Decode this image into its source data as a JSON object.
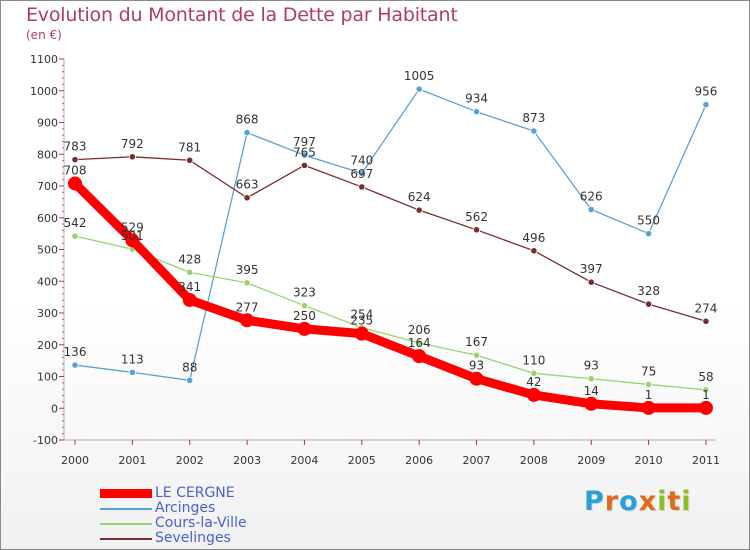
{
  "header": {
    "title": "Evolution du Montant de la Dette par Habitant",
    "subtitle": "(en €)"
  },
  "brand": {
    "logo_letters": [
      {
        "char": "P",
        "color": "#2aa0d8"
      },
      {
        "char": "r",
        "color": "#e06a1c"
      },
      {
        "char": "o",
        "color": "#2aa0d8"
      },
      {
        "char": "x",
        "color": "#e06a1c"
      },
      {
        "char": "i",
        "color": "#8cbf26"
      },
      {
        "char": "t",
        "color": "#e06a1c"
      },
      {
        "char": "i",
        "color": "#8cbf26"
      }
    ]
  },
  "chart_data": {
    "type": "line",
    "title": "Evolution du Montant de la Dette par Habitant",
    "subtitle": "(en €)",
    "xlabel": "",
    "ylabel": "",
    "x": [
      "2000",
      "2001",
      "2002",
      "2003",
      "2004",
      "2005",
      "2006",
      "2007",
      "2008",
      "2009",
      "2010",
      "2011"
    ],
    "ylim": [
      -100,
      1100
    ],
    "yticks": [
      -100,
      0,
      100,
      200,
      300,
      400,
      500,
      600,
      700,
      800,
      900,
      1000,
      1100
    ],
    "grid": false,
    "legend_position": "bottom-left",
    "series": [
      {
        "name": "LE CERGNE",
        "color": "#ff0000",
        "values": [
          708,
          529,
          341,
          277,
          250,
          235,
          164,
          93,
          42,
          14,
          1,
          1
        ],
        "labels": [
          "708",
          "529",
          "341",
          "277",
          "250",
          "235",
          "164",
          "93",
          "42",
          "14",
          "1",
          "1"
        ]
      },
      {
        "name": "Arcinges",
        "color": "#5aa2d6",
        "values": [
          136,
          113,
          88,
          868,
          797,
          740,
          1005,
          934,
          873,
          626,
          550,
          956
        ],
        "labels": [
          "136",
          "113",
          "88",
          "868",
          "797",
          "740",
          "1005",
          "934",
          "873",
          "626",
          "550",
          "956"
        ]
      },
      {
        "name": "Cours-la-Ville",
        "color": "#98d36e",
        "values": [
          542,
          501,
          428,
          395,
          323,
          254,
          206,
          167,
          110,
          93,
          75,
          58
        ],
        "labels": [
          "542",
          "501",
          "428",
          "395",
          "323",
          "254",
          "206",
          "167",
          "110",
          "93",
          "75",
          "58"
        ]
      },
      {
        "name": "Sevelinges",
        "color": "#7a2c2c",
        "values": [
          783,
          792,
          781,
          663,
          765,
          697,
          624,
          562,
          496,
          397,
          328,
          274
        ],
        "labels": [
          "783",
          "792",
          "781",
          "663",
          "765",
          "697",
          "624",
          "562",
          "496",
          "397",
          "328",
          "274"
        ]
      }
    ]
  }
}
